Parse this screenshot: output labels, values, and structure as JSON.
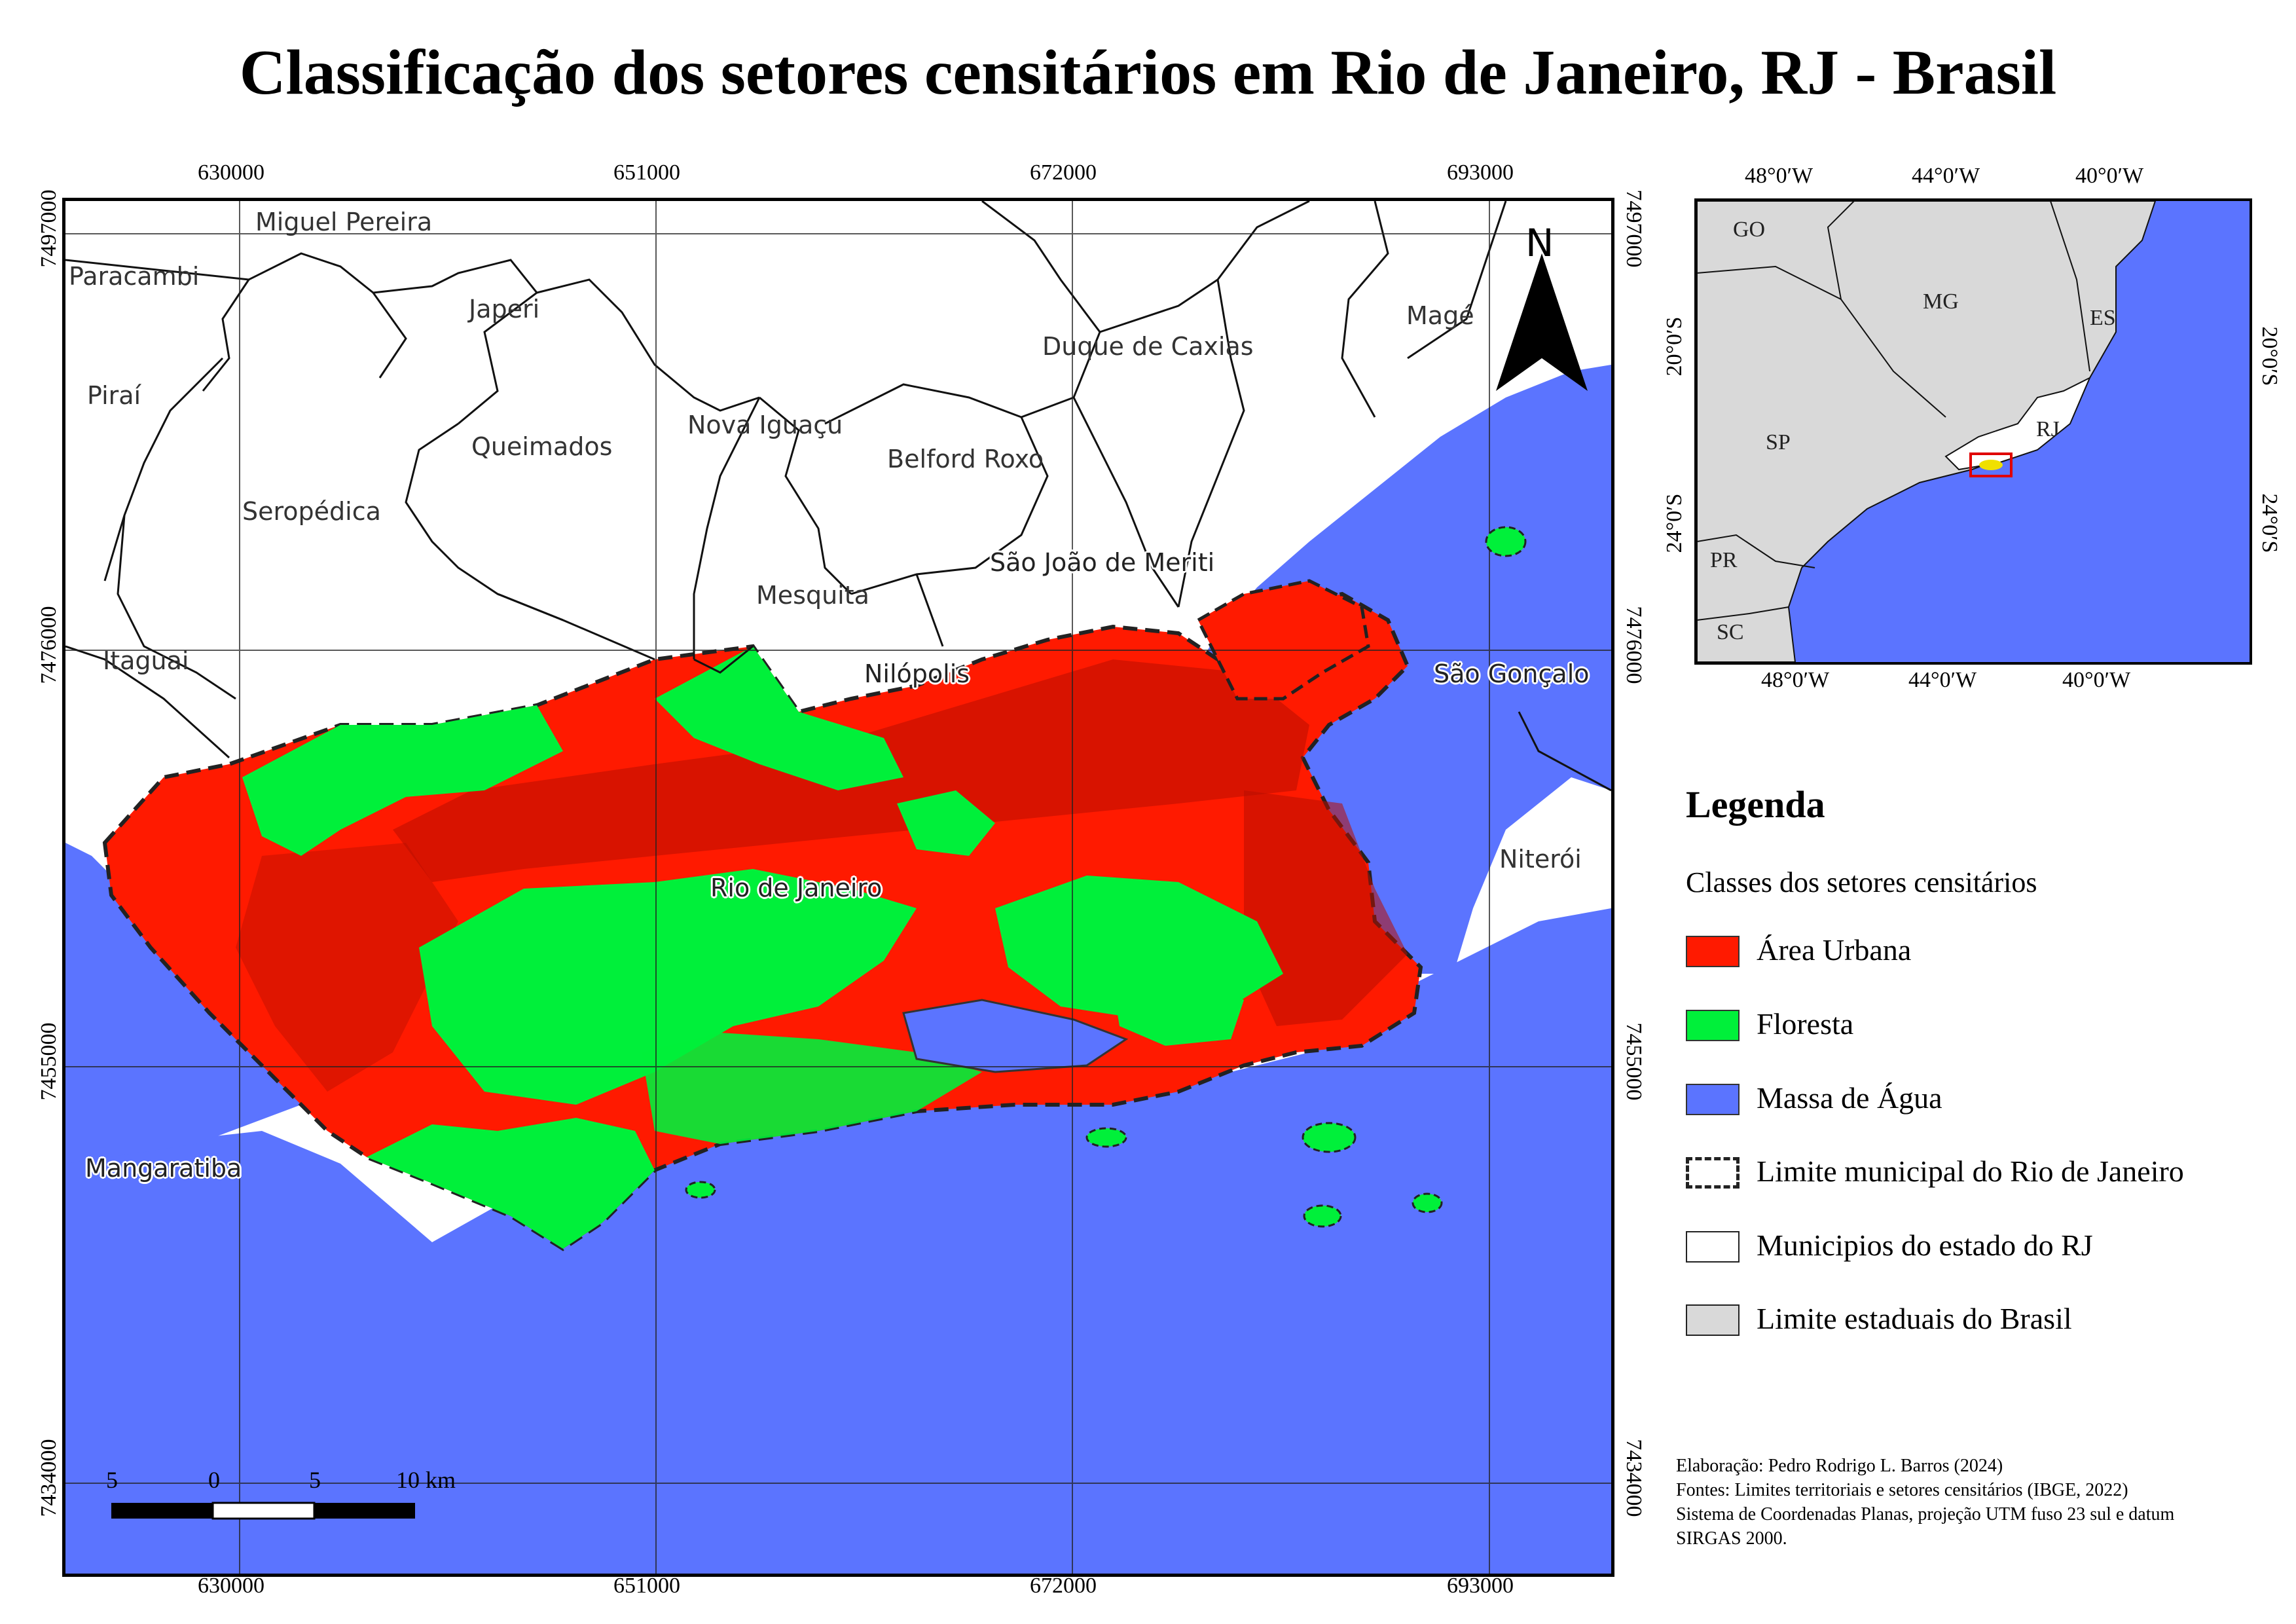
{
  "title": "Classificação dos setores censitários em Rio de Janeiro, RJ - Brasil",
  "main_map": {
    "x_ticks": [
      "630000",
      "651000",
      "672000",
      "693000"
    ],
    "y_ticks": [
      "7497000",
      "7476000",
      "7455000",
      "7434000"
    ],
    "north_label": "N",
    "municipalities": {
      "miguel_pereira": "Miguel Pereira",
      "paracambi": "Paracambi",
      "japeri": "Japeri",
      "duque_de_caxias": "Duque de Caxias",
      "mage": "Magé",
      "pirai": "Piraí",
      "queimados": "Queimados",
      "nova_iguacu": "Nova Iguaçu",
      "belford_roxo": "Belford Roxo",
      "seropedica": "Seropédica",
      "sao_joao_de_meriti": "São João de Meriti",
      "mesquita": "Mesquita",
      "itaguai": "Itaguai",
      "nilopolis": "Nilópolis",
      "sao_goncalo": "São Gonçalo",
      "rio_de_janeiro": "Rio de Janeiro",
      "niteroi": "Niterói",
      "mangaratiba": "Mangaratiba"
    },
    "scale_bar": {
      "labels": [
        "5",
        "0",
        "5",
        "10 km"
      ]
    }
  },
  "inset_map": {
    "x_ticks": [
      "48°0′W",
      "44°0′W",
      "40°0′W"
    ],
    "y_ticks": [
      "20°0′S",
      "24°0′S"
    ],
    "states": [
      "GO",
      "MG",
      "ES",
      "SP",
      "RJ",
      "PR",
      "SC"
    ]
  },
  "legend": {
    "title": "Legenda",
    "subtitle": "Classes dos setores censitários",
    "items": [
      {
        "label": "Área Urbana",
        "color": "#ff1a00",
        "style": "fill"
      },
      {
        "label": "Floresta",
        "color": "#00f03a",
        "style": "fill"
      },
      {
        "label": "Massa de Água",
        "color": "#5b74ff",
        "style": "fill"
      },
      {
        "label": "Limite municipal do Rio de Janeiro",
        "color": "#ffffff",
        "style": "dashed"
      },
      {
        "label": "Municipios do estado do RJ",
        "color": "#ffffff",
        "style": "outline"
      },
      {
        "label": "Limite estaduais do Brasil",
        "color": "#d9d9d9",
        "style": "fill"
      }
    ]
  },
  "credits": [
    "Elaboração: Pedro Rodrigo L. Barros (2024)",
    "Fontes: Limites territoriais e setores censitários (IBGE, 2022)",
    "Sistema de Coordenadas Planas, projeção UTM fuso 23 sul e datum",
    "SIRGAS 2000."
  ],
  "colors": {
    "urban": "#ff1a00",
    "forest": "#00f03a",
    "water": "#5b74ff",
    "states": "#d9d9d9"
  }
}
